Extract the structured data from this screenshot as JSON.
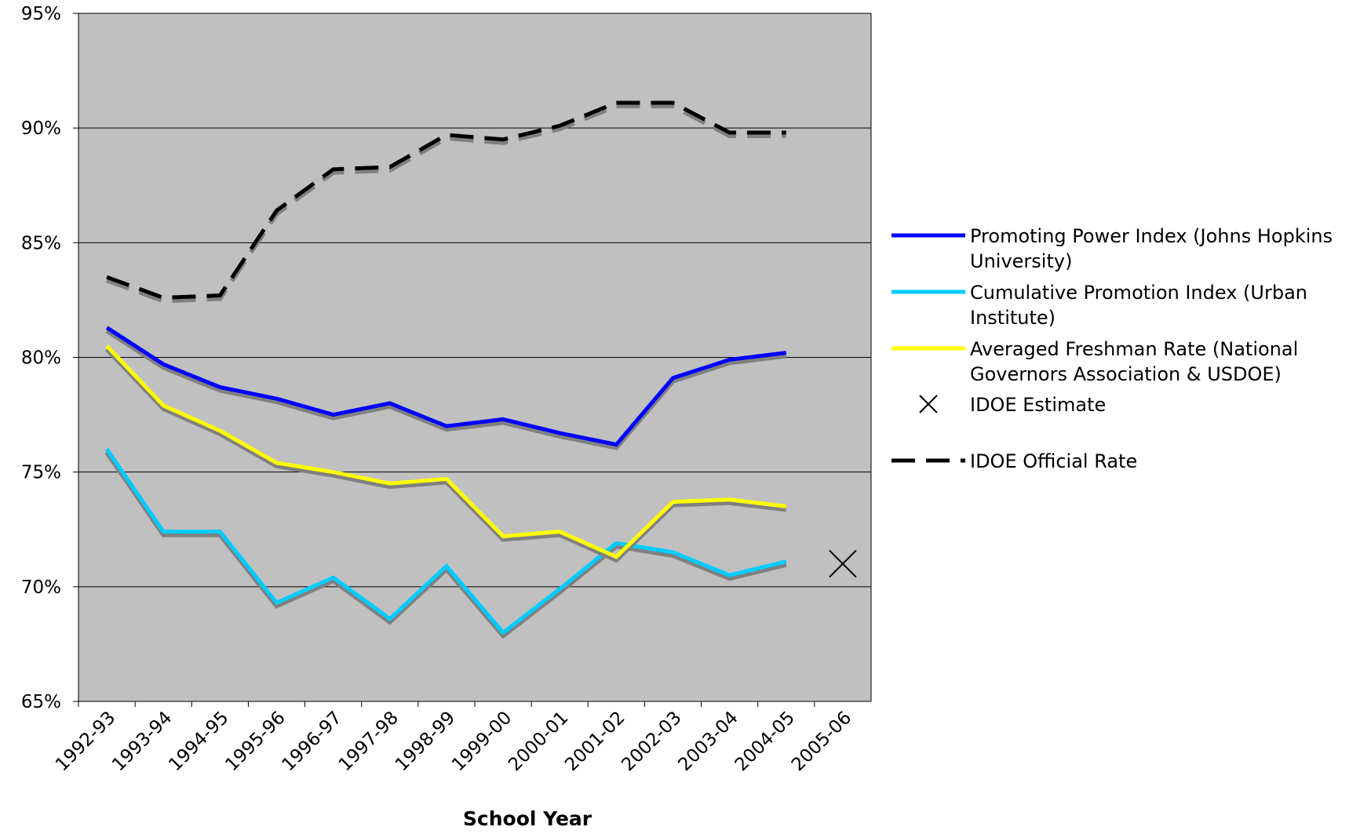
{
  "chart_data": {
    "type": "line",
    "x_label": "School Year",
    "categories": [
      "1992-93",
      "1993-94",
      "1994-95",
      "1995-96",
      "1996-97",
      "1997-98",
      "1998-99",
      "1999-00",
      "2000-01",
      "2001-02",
      "2002-03",
      "2003-04",
      "2004-05",
      "2005-06"
    ],
    "series": [
      {
        "name": "Promoting Power Index (Johns Hopkins University)",
        "color": "#0000ff",
        "style": "solid",
        "values": [
          81.3,
          79.7,
          78.7,
          78.2,
          77.5,
          78.0,
          77.0,
          77.3,
          76.7,
          76.2,
          79.1,
          79.9,
          80.2,
          null
        ]
      },
      {
        "name": "Cumulative Promotion Index (Urban Institute)",
        "color": "#00ccff",
        "style": "solid",
        "values": [
          76.0,
          72.4,
          72.4,
          69.3,
          70.4,
          68.6,
          70.9,
          68.0,
          69.9,
          71.9,
          71.5,
          70.5,
          71.1,
          null
        ]
      },
      {
        "name": "Averaged Freshman Rate (National Governors Association & USDOE)",
        "color": "#ffff00",
        "style": "solid",
        "values": [
          80.5,
          77.9,
          76.8,
          75.4,
          75.0,
          74.5,
          74.7,
          72.2,
          72.4,
          71.3,
          73.7,
          73.8,
          73.5,
          null
        ]
      },
      {
        "name": "IDOE Estimate",
        "color": "#000000",
        "style": "marker",
        "values": [
          null,
          null,
          null,
          null,
          null,
          null,
          null,
          null,
          null,
          null,
          null,
          null,
          null,
          71.0
        ]
      },
      {
        "name": "IDOE Official Rate",
        "color": "#000000",
        "style": "dashed",
        "values": [
          83.5,
          82.6,
          82.7,
          86.4,
          88.2,
          88.3,
          89.7,
          89.5,
          90.1,
          91.1,
          91.1,
          89.8,
          89.8,
          null
        ]
      }
    ],
    "ylim": [
      65,
      95
    ],
    "yticks": [
      {
        "value": 65,
        "label": "65%"
      },
      {
        "value": 70,
        "label": "70%"
      },
      {
        "value": 75,
        "label": "75%"
      },
      {
        "value": 80,
        "label": "80%"
      },
      {
        "value": 85,
        "label": "85%"
      },
      {
        "value": 90,
        "label": "90%"
      },
      {
        "value": 95,
        "label": "95%"
      }
    ],
    "grid": true,
    "legend": "right"
  }
}
